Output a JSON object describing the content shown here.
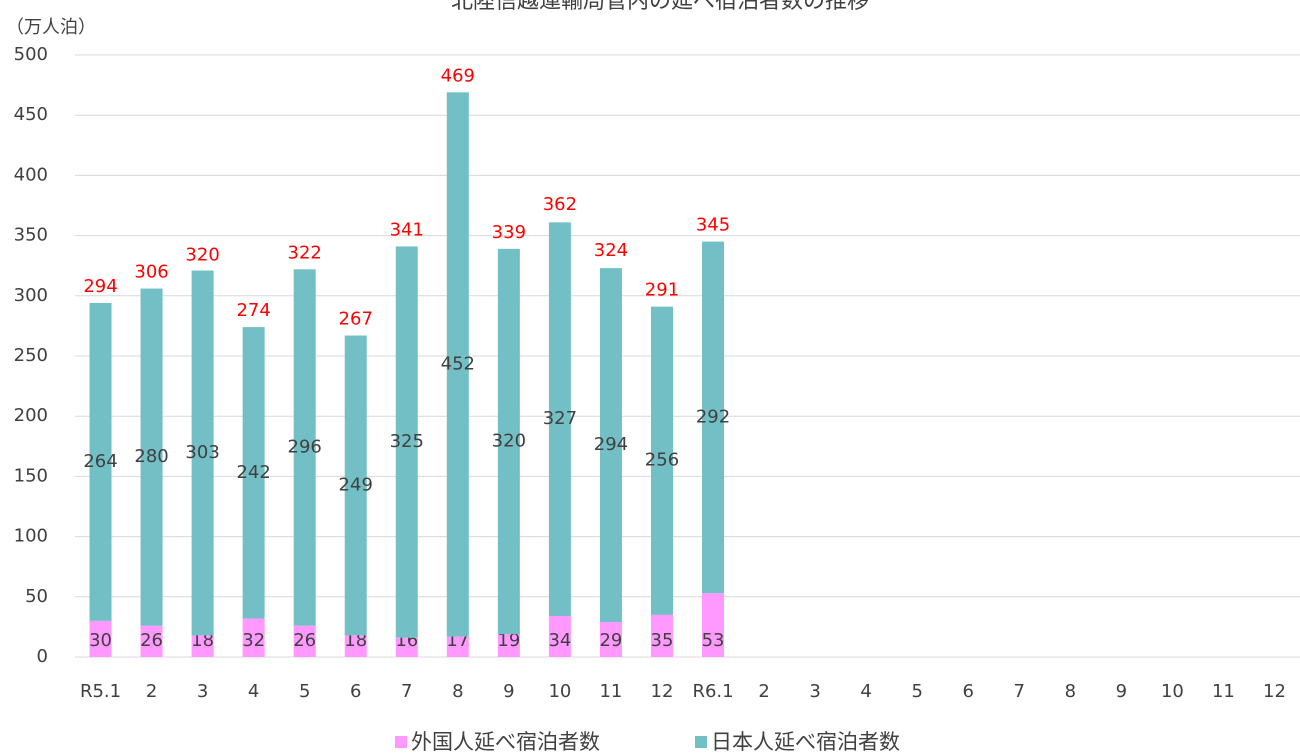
{
  "chart_data": {
    "type": "stacked_bar",
    "title": "北陸信越運輸局管内の延べ宿泊者数の推移",
    "y_label": "（万人泊）",
    "categories": [
      "R5.1",
      "2",
      "3",
      "4",
      "5",
      "6",
      "7",
      "8",
      "9",
      "10",
      "11",
      "12",
      "R6.1",
      "2",
      "3",
      "4",
      "5",
      "6",
      "7",
      "8",
      "9",
      "10",
      "11",
      "12"
    ],
    "series": [
      {
        "name": "外国人延べ宿泊者数",
        "color": "#ff99ff",
        "values": [
          30,
          26,
          18,
          32,
          26,
          18,
          16,
          17,
          19,
          34,
          29,
          35,
          53,
          null,
          null,
          null,
          null,
          null,
          null,
          null,
          null,
          null,
          null,
          null
        ]
      },
      {
        "name": "日本人延べ宿泊者数",
        "color": "#72bfc5",
        "values": [
          264,
          280,
          303,
          242,
          296,
          249,
          325,
          452,
          320,
          327,
          294,
          256,
          292,
          null,
          null,
          null,
          null,
          null,
          null,
          null,
          null,
          null,
          null,
          null
        ]
      }
    ],
    "totals": [
      294,
      306,
      320,
      274,
      322,
      267,
      341,
      469,
      339,
      362,
      324,
      291,
      345,
      null,
      null,
      null,
      null,
      null,
      null,
      null,
      null,
      null,
      null,
      null
    ],
    "total_color": "#ff0000",
    "ylim": [
      0,
      500
    ],
    "yticks": [
      0,
      50,
      100,
      150,
      200,
      250,
      300,
      350,
      400,
      450,
      500
    ],
    "grid": true,
    "legend": "bottom"
  }
}
